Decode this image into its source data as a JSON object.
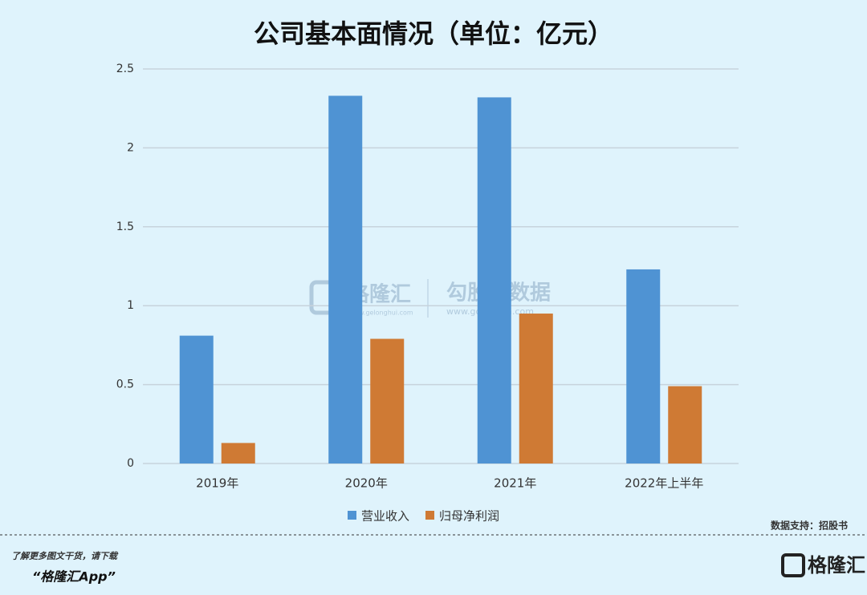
{
  "chart_data": {
    "type": "bar",
    "title": "公司基本面情况（单位：亿元）",
    "categories": [
      "2019年",
      "2020年",
      "2021年",
      "2022年上半年"
    ],
    "series": [
      {
        "name": "营业收入",
        "color": "#4f93d3",
        "values": [
          0.81,
          2.33,
          2.32,
          1.23
        ]
      },
      {
        "name": "归母净利润",
        "color": "#cf7a34",
        "values": [
          0.13,
          0.79,
          0.95,
          0.49
        ]
      }
    ],
    "ylim": [
      0,
      2.5
    ],
    "yticks": [
      0,
      0.5,
      1,
      1.5,
      2,
      2.5
    ],
    "grid": true,
    "legend": "bottom"
  },
  "watermark": {
    "brand": "格隆汇",
    "brand_url": "www.gelonghui.com",
    "partner": "勾股大数据",
    "partner_url": "www.gogudata.com"
  },
  "source": "数据支持：招股书",
  "footer": {
    "line1": "了解更多图文干货，请下载",
    "line2": "“格隆汇App”",
    "logo": "格隆汇"
  }
}
